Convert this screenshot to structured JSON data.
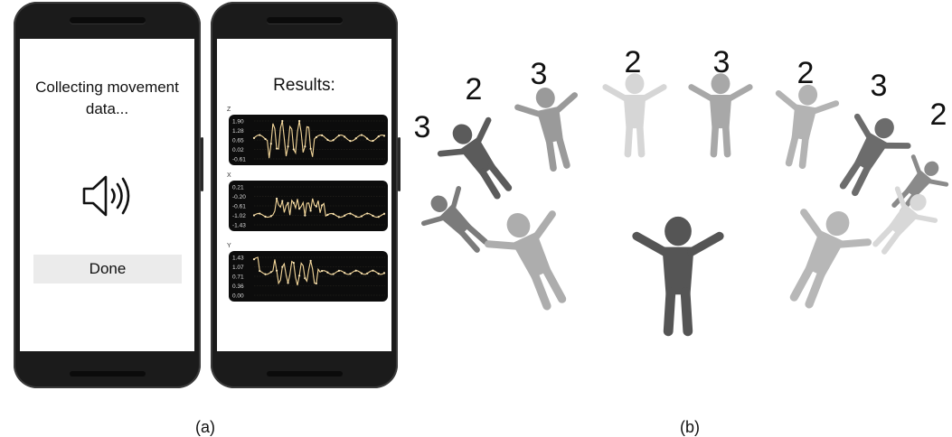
{
  "left_phone": {
    "status_text": "Collecting movement data...",
    "speaker_icon": "speaker-sound-icon",
    "done_label": "Done"
  },
  "right_phone": {
    "title": "Results:",
    "charts": [
      {
        "axis": "Z",
        "ticks": [
          "1.90",
          "1.28",
          "0.65",
          "0.02",
          "-0.61"
        ]
      },
      {
        "axis": "X",
        "ticks": [
          "0.21",
          "-0.20",
          "-0.61",
          "-1.02",
          "-1.43"
        ]
      },
      {
        "axis": "Y",
        "ticks": [
          "1.43",
          "1.07",
          "0.71",
          "0.36",
          "0.00"
        ]
      }
    ],
    "line_color": "#f4d79a"
  },
  "circle_figure": {
    "numbers": [
      "3",
      "2",
      "3",
      "2",
      "3",
      "2",
      "3",
      "2"
    ]
  },
  "captions": {
    "a": "(a)",
    "b": "(b)"
  }
}
